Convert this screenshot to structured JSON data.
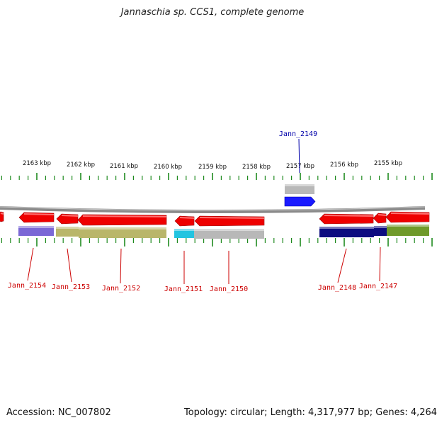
{
  "title": "Jannaschia sp. CCS1, complete genome",
  "footer": {
    "accession": "Accession: NC_007802",
    "topology": "Topology: circular; Length: 4,317,977 bp; Genes: 4,264"
  },
  "colors": {
    "backbone": "#8a8a8a",
    "tick": "#1f8a1f",
    "cds_arrow": "#ee0000",
    "label_red": "#cc0000",
    "label_blue": "#0000aa",
    "highlight_arrow": "#1a1aff",
    "gray_block": "#b8b8b8",
    "purple_block": "#7b68d6",
    "olive_block": "#b9b66a",
    "cyan_block": "#22c4e0",
    "navy_block": "#0c0c80",
    "green_block": "#6f9a2a"
  },
  "kbp_scale": [
    {
      "label": "2163 kbp"
    },
    {
      "label": "2162 kbp"
    },
    {
      "label": "2161 kbp"
    },
    {
      "label": "2160 kbp"
    },
    {
      "label": "2159 kbp"
    },
    {
      "label": "2158 kbp"
    },
    {
      "label": "2157 kbp"
    },
    {
      "label": "2156 kbp"
    },
    {
      "label": "2155 kbp"
    }
  ],
  "genes": [
    {
      "name": "Jann_2154",
      "strand": "reverse",
      "color": "red"
    },
    {
      "name": "Jann_2153",
      "strand": "reverse",
      "color": "red"
    },
    {
      "name": "Jann_2152",
      "strand": "reverse",
      "color": "red"
    },
    {
      "name": "Jann_2151",
      "strand": "reverse",
      "color": "red"
    },
    {
      "name": "Jann_2150",
      "strand": "reverse",
      "color": "red"
    },
    {
      "name": "Jann_2149",
      "strand": "forward",
      "color": "blue"
    },
    {
      "name": "Jann_2148",
      "strand": "reverse",
      "color": "red"
    },
    {
      "name": "Jann_2147",
      "strand": "reverse",
      "color": "red"
    }
  ]
}
